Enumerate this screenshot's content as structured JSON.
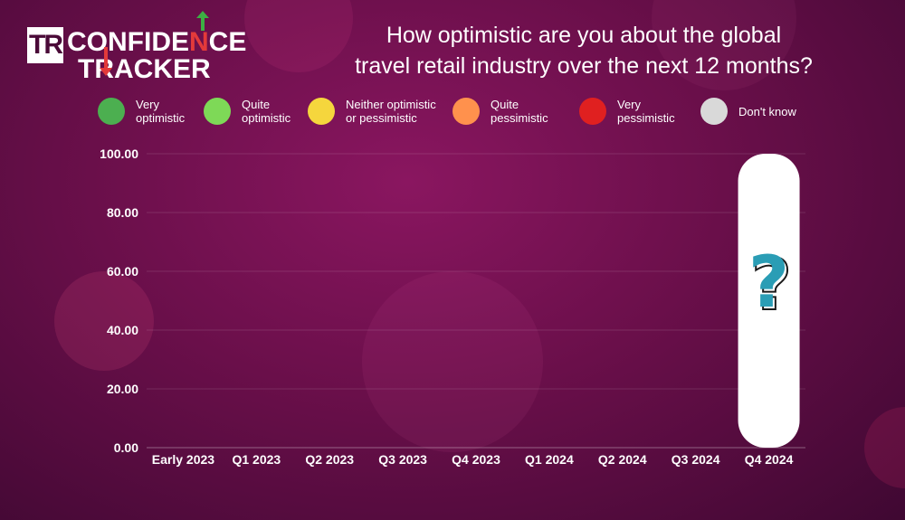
{
  "logo": {
    "tr": "TR",
    "line1_a": "CONFIDE",
    "line1_b": "N",
    "line1_c": "CE",
    "line2": "TRACKER"
  },
  "title_lines": [
    "How optimistic are you about the global",
    "travel retail industry over the next 12 months?"
  ],
  "legend": [
    {
      "label": "Very\noptimistic",
      "color": "#4caf50"
    },
    {
      "label": "Quite\noptimistic",
      "color": "#7ed957"
    },
    {
      "label": "Neither optimistic\nor pessimistic",
      "color": "#f5d63d"
    },
    {
      "label": "Quite\npessimistic",
      "color": "#ff914d"
    },
    {
      "label": "Very\npessimistic",
      "color": "#e02020"
    },
    {
      "label": "Don't know",
      "color": "#d9d9d9"
    }
  ],
  "chart_data": {
    "type": "bar",
    "categories": [
      "Early 2023",
      "Q1 2023",
      "Q2 2023",
      "Q3 2023",
      "Q4 2023",
      "Q1 2024",
      "Q2 2024",
      "Q3 2024",
      "Q4 2024"
    ],
    "y_ticks": [
      "100.00",
      "80.00",
      "60.00",
      "40.00",
      "20.00",
      "0.00"
    ],
    "ylim": [
      0,
      100
    ],
    "series": [
      {
        "values": [
          null,
          null,
          null,
          null,
          null,
          null,
          null,
          null,
          100
        ]
      }
    ],
    "annotation": "?",
    "grid": true
  },
  "colors": {
    "placeholder_bar": "#ffffff",
    "question_mark": "#2a9db5"
  }
}
